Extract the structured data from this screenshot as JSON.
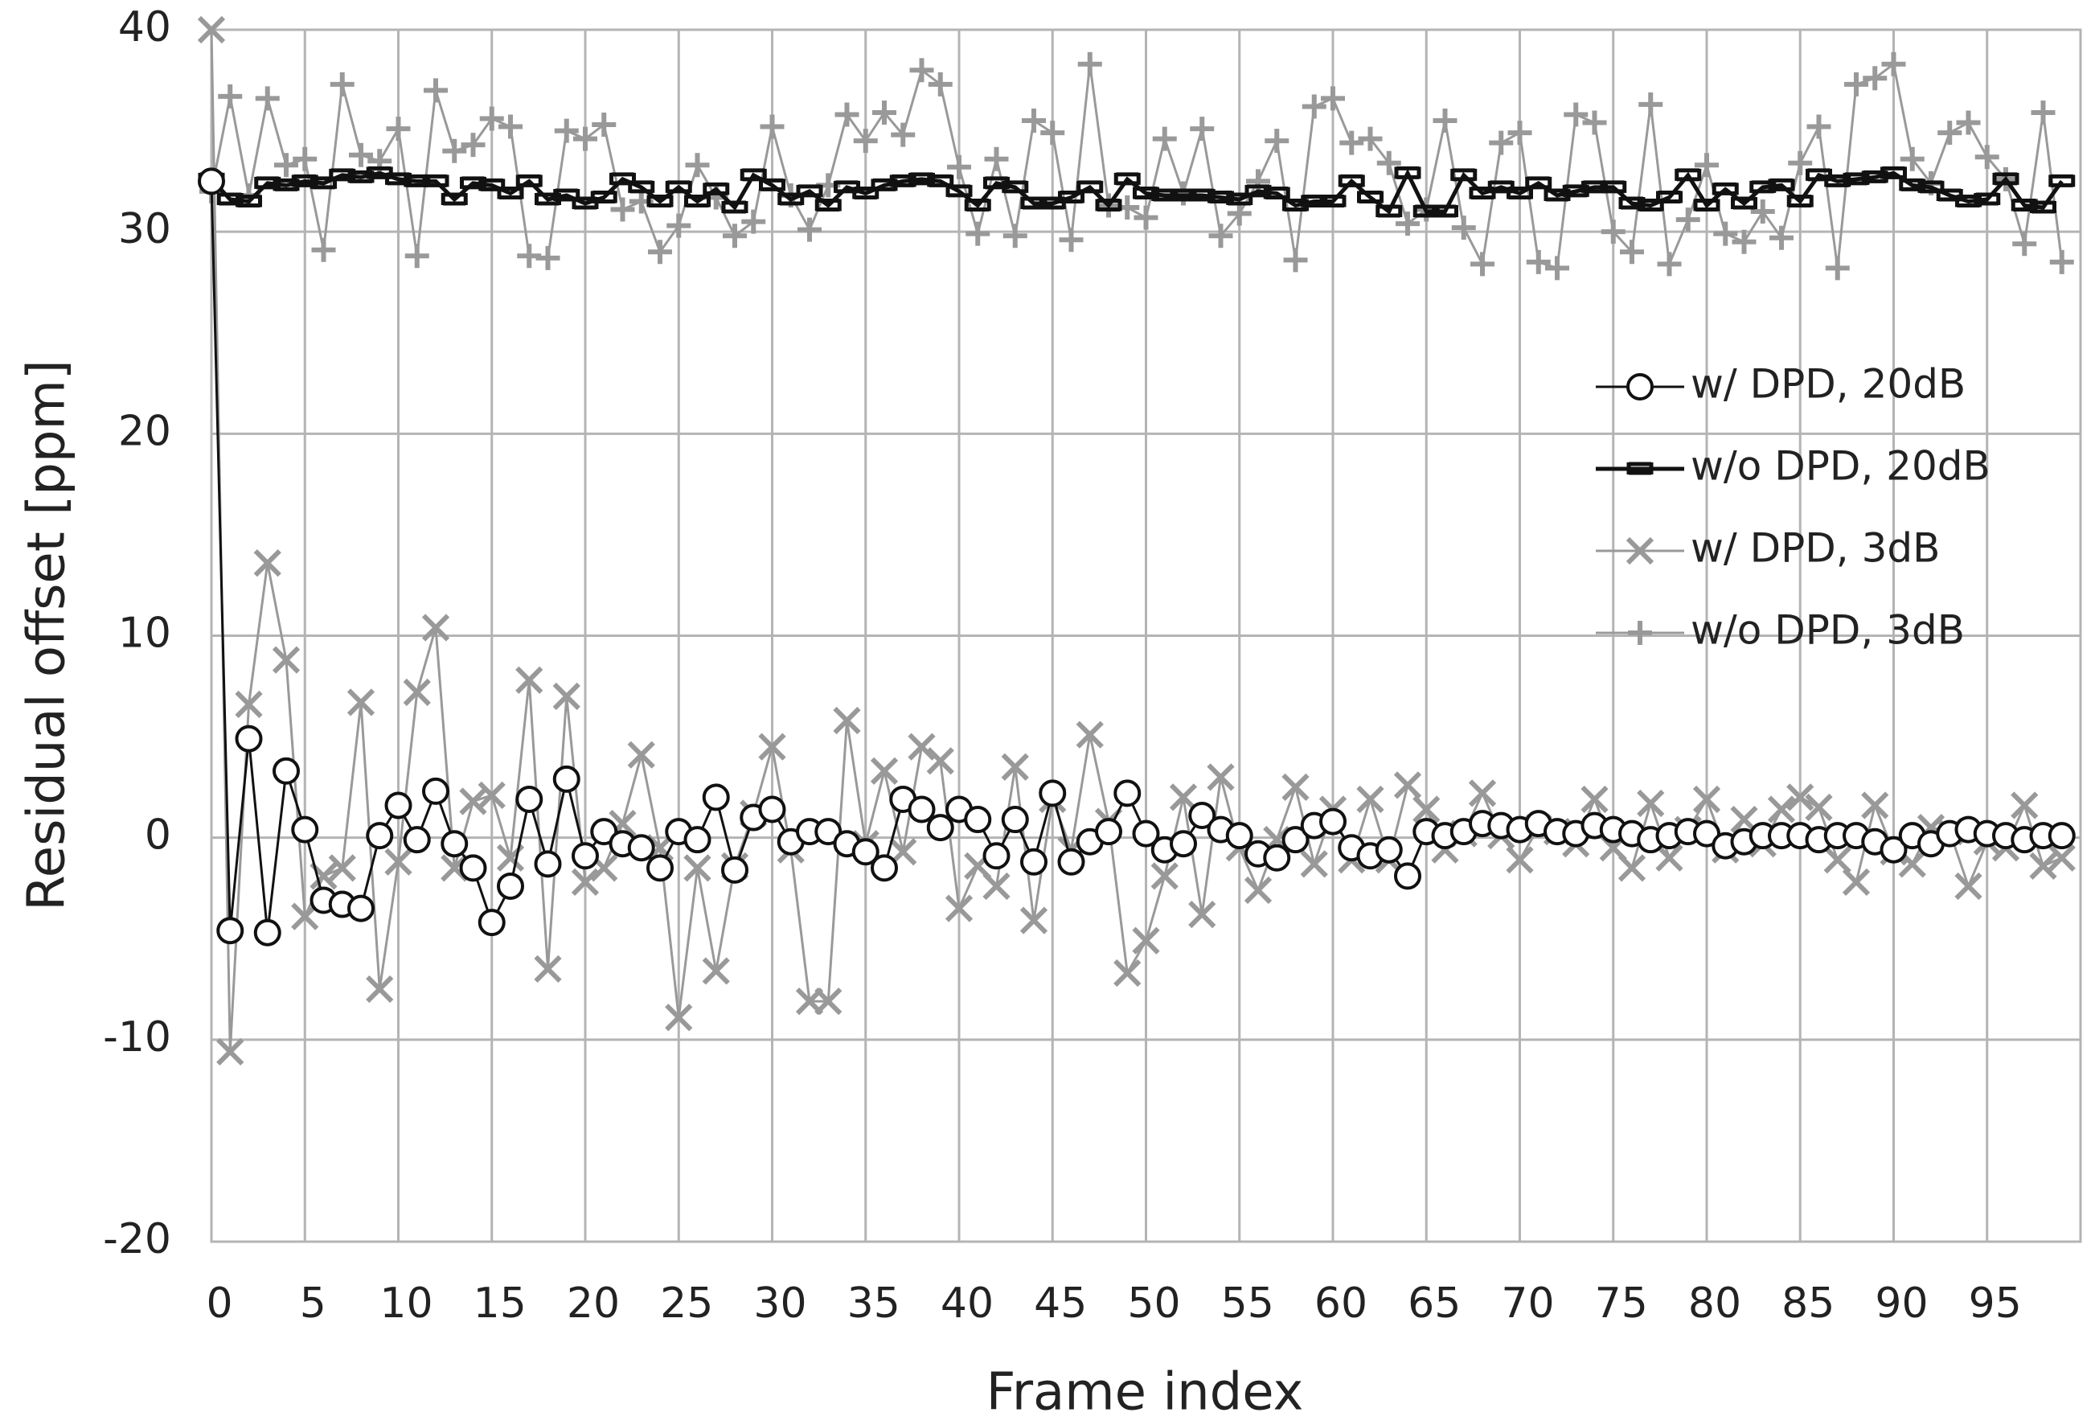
{
  "chart_data": {
    "type": "line",
    "x_label": "Frame index",
    "y_label": "Residual offset [ppm]",
    "xlim": [
      0,
      100
    ],
    "xticks": [
      0,
      5,
      10,
      15,
      20,
      25,
      30,
      35,
      40,
      45,
      50,
      55,
      60,
      65,
      70,
      75,
      80,
      85,
      90,
      95
    ],
    "ylim": [
      -20,
      40
    ],
    "yticks": [
      -20,
      -10,
      0,
      10,
      20,
      30,
      40
    ],
    "grid": true,
    "legend": "right",
    "x": [
      0,
      1,
      2,
      3,
      4,
      5,
      6,
      7,
      8,
      9,
      10,
      11,
      12,
      13,
      14,
      15,
      16,
      17,
      18,
      19,
      20,
      21,
      22,
      23,
      24,
      25,
      26,
      27,
      28,
      29,
      30,
      31,
      32,
      33,
      34,
      35,
      36,
      37,
      38,
      39,
      40,
      41,
      42,
      43,
      44,
      45,
      46,
      47,
      48,
      49,
      50,
      51,
      52,
      53,
      54,
      55,
      56,
      57,
      58,
      59,
      60,
      61,
      62,
      63,
      64,
      65,
      66,
      67,
      68,
      69,
      70,
      71,
      72,
      73,
      74,
      75,
      76,
      77,
      78,
      79,
      80,
      81,
      82,
      83,
      84,
      85,
      86,
      87,
      88,
      89,
      90,
      91,
      92,
      93,
      94,
      95,
      96,
      97,
      98,
      99
    ],
    "series": [
      {
        "name": "w/ DPD, 20dB",
        "color": "#111111",
        "marker": "circle",
        "values": [
          32.5,
          -4.6,
          4.9,
          -4.7,
          3.3,
          0.4,
          -3.1,
          -3.3,
          -3.5,
          0.1,
          1.6,
          -0.1,
          2.3,
          -0.3,
          -1.5,
          -4.2,
          -2.4,
          1.9,
          -1.3,
          2.9,
          -0.9,
          0.3,
          -0.3,
          -0.5,
          -1.5,
          0.3,
          -0.1,
          2.0,
          -1.6,
          1.0,
          1.4,
          -0.2,
          0.3,
          0.3,
          -0.3,
          -0.7,
          -1.5,
          1.9,
          1.4,
          0.5,
          1.4,
          0.9,
          -0.9,
          0.9,
          -1.2,
          2.2,
          -1.2,
          -0.2,
          0.3,
          2.2,
          0.2,
          -0.6,
          -0.3,
          1.1,
          0.4,
          0.1,
          -0.8,
          -1.0,
          -0.1,
          0.6,
          0.8,
          -0.5,
          -0.9,
          -0.6,
          -1.9,
          0.3,
          0.1,
          0.3,
          0.7,
          0.6,
          0.4,
          0.7,
          0.3,
          0.2,
          0.6,
          0.4,
          0.2,
          -0.1,
          0.1,
          0.3,
          0.2,
          -0.4,
          -0.2,
          0.1,
          0.1,
          0.1,
          -0.1,
          0.1,
          0.1,
          -0.2,
          -0.6,
          0.1,
          -0.3,
          0.2,
          0.4,
          0.2,
          0.1,
          -0.1,
          0.1,
          0.1
        ]
      },
      {
        "name": "w/o DPD, 20dB",
        "color": "#111111",
        "marker": "dash",
        "values": [
          32.6,
          31.6,
          31.5,
          32.4,
          32.3,
          32.5,
          32.4,
          32.8,
          32.7,
          32.9,
          32.6,
          32.5,
          32.5,
          31.6,
          32.4,
          32.3,
          31.9,
          32.5,
          31.6,
          31.8,
          31.4,
          31.7,
          32.6,
          32.2,
          31.5,
          32.2,
          31.5,
          32.1,
          31.2,
          32.8,
          32.3,
          31.6,
          32.0,
          31.3,
          32.2,
          31.9,
          32.3,
          32.5,
          32.6,
          32.5,
          32.0,
          31.3,
          32.4,
          32.2,
          31.4,
          31.4,
          31.7,
          32.2,
          31.3,
          32.6,
          31.9,
          31.8,
          31.8,
          31.8,
          31.7,
          31.6,
          32.0,
          31.9,
          31.3,
          31.5,
          31.5,
          32.5,
          31.7,
          31.0,
          32.9,
          31.0,
          31.0,
          32.8,
          31.9,
          32.2,
          31.9,
          32.4,
          31.8,
          32.0,
          32.2,
          32.2,
          31.4,
          31.3,
          31.7,
          32.8,
          31.3,
          32.1,
          31.4,
          32.2,
          32.3,
          31.5,
          32.8,
          32.5,
          32.6,
          32.7,
          32.9,
          32.3,
          32.2,
          31.8,
          31.5,
          31.6,
          32.6,
          31.3,
          31.2,
          32.5
        ]
      },
      {
        "name": "w/ DPD, 3dB",
        "color": "#999999",
        "marker": "cross",
        "values": [
          40,
          -10.6,
          6.6,
          13.6,
          8.8,
          -3.9,
          -1.9,
          -1.5,
          6.7,
          -7.5,
          -1.2,
          7.2,
          10.4,
          -1.5,
          1.8,
          2.1,
          -1.0,
          7.8,
          -6.5,
          7.0,
          -2.2,
          -1.5,
          0.7,
          4.1,
          -0.5,
          -8.9,
          -1.5,
          -6.6,
          -1.4,
          1.2,
          4.5,
          -0.6,
          -8.1,
          -8.1,
          5.8,
          -0.3,
          3.3,
          -0.7,
          4.5,
          3.8,
          -3.5,
          -1.4,
          -2.4,
          3.5,
          -4.1,
          1.9,
          -0.6,
          5.1,
          0.8,
          -6.7,
          -5.1,
          -1.9,
          2.0,
          -3.8,
          3.0,
          -0.5,
          -2.6,
          -0.1,
          2.5,
          -1.3,
          1.4,
          -1.1,
          1.9,
          -1.1,
          2.6,
          1.4,
          -0.6,
          0.2,
          2.2,
          0.1,
          -1.1,
          0.5,
          0.3,
          -0.3,
          1.9,
          -0.5,
          -1.5,
          1.7,
          -1.0,
          0.4,
          1.9,
          -0.6,
          0.9,
          -0.3,
          1.4,
          2.0,
          1.5,
          -1.1,
          -2.2,
          1.6,
          -0.7,
          -1.3,
          0.5,
          0.3,
          -2.4,
          -0.2,
          -0.5,
          1.6,
          -1.4,
          -1.0
        ]
      },
      {
        "name": "w/o DPD, 3dB",
        "color": "#999999",
        "marker": "plus",
        "values": [
          32.0,
          36.7,
          31.8,
          36.6,
          33.3,
          33.6,
          29.1,
          37.3,
          33.8,
          33.5,
          35.1,
          28.8,
          37.0,
          34.0,
          34.3,
          35.6,
          35.2,
          28.8,
          28.7,
          35.0,
          34.6,
          35.3,
          31.1,
          31.5,
          29.0,
          30.3,
          33.3,
          31.7,
          29.8,
          30.5,
          35.2,
          31.8,
          30.1,
          32.3,
          35.8,
          34.5,
          35.9,
          34.8,
          38.0,
          37.3,
          33.2,
          29.9,
          33.6,
          29.8,
          35.5,
          34.9,
          29.6,
          38.3,
          31.3,
          31.2,
          30.7,
          34.6,
          31.9,
          35.1,
          29.8,
          30.9,
          32.5,
          34.5,
          28.6,
          36.2,
          36.6,
          34.4,
          34.6,
          33.4,
          30.4,
          31.1,
          35.5,
          30.2,
          28.4,
          34.4,
          34.9,
          28.5,
          28.2,
          35.8,
          35.4,
          30.0,
          29.0,
          36.3,
          28.4,
          30.6,
          33.3,
          29.9,
          29.5,
          31.0,
          29.7,
          33.4,
          35.2,
          28.2,
          37.3,
          37.6,
          38.3,
          33.6,
          32.4,
          34.9,
          35.4,
          33.7,
          32.6,
          29.4,
          35.9,
          28.5
        ]
      }
    ]
  }
}
